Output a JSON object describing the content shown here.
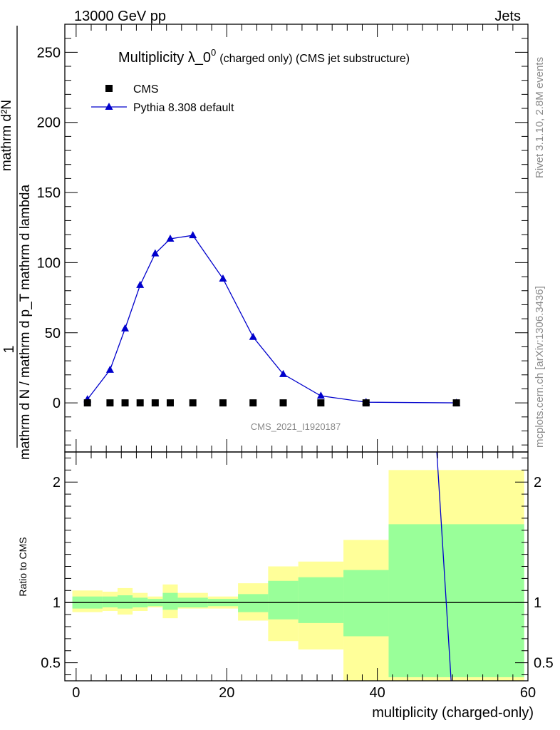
{
  "header": {
    "left": "13000 GeV pp",
    "right": "Jets"
  },
  "side_labels": {
    "rivet": "Rivet 3.1.10,  2.8M events",
    "mcplots": "mcplots.cern.ch [arXiv:1306.3436]"
  },
  "chart_data": [
    {
      "type": "scatter",
      "title_main": "Multiplicity λ_0",
      "title_sup": "0",
      "title_rest": "(charged only) (CMS jet substructure)",
      "ylabel_numerator": "1",
      "ylabel_denominator": "mathrm d N / mathrm d p_T mathrm d lambda",
      "ylabel_denominator_parts": [
        "mathrm d N / mathrm d p",
        "mathrm d p",
        "mathrm d lambda"
      ],
      "ylabel_top": "mathrm d²N",
      "ylabel_tex": "mathrm d²N / mathrm d p_T mathrm d lambda",
      "ylim": [
        -35,
        270
      ],
      "xlim": [
        -1.5,
        60
      ],
      "yticks": [
        0,
        50,
        100,
        150,
        200,
        250
      ],
      "yticklabels": [
        "0",
        "50",
        "100",
        "150",
        "200",
        "250"
      ],
      "watermark": "CMS_2021_I1920187",
      "legend_position": "top-left",
      "series": [
        {
          "name": "CMS",
          "marker": "square",
          "color": "#000000",
          "x": [
            1.5,
            4.5,
            6.5,
            8.5,
            10.5,
            12.5,
            15.5,
            19.5,
            23.5,
            27.5,
            32.5,
            38.5,
            50.5
          ],
          "y": [
            0,
            0,
            0,
            0,
            0,
            0,
            0,
            0,
            0,
            0,
            0,
            0,
            0
          ]
        },
        {
          "name": "Pythia 8.308 default",
          "marker": "triangle",
          "color": "#0000cc",
          "x": [
            1.5,
            4.5,
            6.5,
            8.5,
            10.5,
            12.5,
            15.5,
            19.5,
            23.5,
            27.5,
            32.5,
            38.5,
            50.5
          ],
          "y": [
            2.5,
            23.5,
            53,
            84,
            106.5,
            117,
            119.5,
            88.5,
            47,
            20.5,
            5,
            0.5,
            0
          ]
        }
      ]
    },
    {
      "type": "area",
      "ylabel": "Ratio to CMS",
      "xlabel": "multiplicity (charged-only)",
      "ylim": [
        0.35,
        2.25
      ],
      "xlim": [
        -1.5,
        60
      ],
      "xticks": [
        0,
        20,
        40,
        60
      ],
      "xticklabels": [
        "0",
        "20",
        "40",
        "60"
      ],
      "yticks": [
        0.5,
        1,
        2
      ],
      "yticklabels": [
        "0.5",
        "1",
        "2"
      ],
      "bands": {
        "bin_edges": [
          -0.5,
          3.5,
          5.5,
          7.5,
          9.5,
          11.5,
          13.5,
          17.5,
          21.5,
          25.5,
          29.5,
          35.5,
          41.5,
          59.5
        ],
        "outer_low": [
          0.92,
          0.93,
          0.9,
          0.93,
          0.96,
          0.87,
          0.95,
          0.95,
          0.85,
          0.68,
          0.61,
          0.35,
          0.35
        ],
        "outer_high": [
          1.1,
          1.09,
          1.12,
          1.08,
          1.05,
          1.15,
          1.08,
          1.05,
          1.16,
          1.3,
          1.34,
          1.52,
          2.1
        ],
        "inner_low": [
          0.95,
          0.96,
          0.95,
          0.96,
          0.97,
          0.94,
          0.96,
          0.97,
          0.92,
          0.86,
          0.83,
          0.72,
          0.38
        ],
        "inner_high": [
          1.05,
          1.05,
          1.06,
          1.04,
          1.03,
          1.08,
          1.04,
          1.03,
          1.07,
          1.18,
          1.21,
          1.27,
          1.65
        ]
      },
      "outer_color": "#ffff99",
      "inner_color": "#99ff99",
      "reference_line": 1,
      "pythia_ratio_line": {
        "color": "#0000cc",
        "x": [
          47.9,
          49.8
        ],
        "y": [
          2.25,
          0.35
        ]
      }
    }
  ]
}
